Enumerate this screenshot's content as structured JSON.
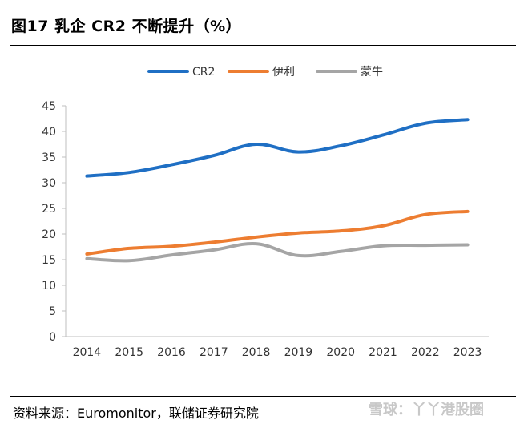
{
  "title": "图17 乳企 CR2 不断提升（%）",
  "source": "资料来源：Euromonitor，联储证券研究院",
  "watermark": "雪球：丫丫港股圈",
  "colors": {
    "CR2": "#1f6fc4",
    "伊利": "#ed7d31",
    "蒙牛": "#a5a5a5"
  },
  "chart_data": {
    "type": "line",
    "x": [
      "2014",
      "2015",
      "2016",
      "2017",
      "2018",
      "2019",
      "2020",
      "2021",
      "2022",
      "2023"
    ],
    "series": [
      {
        "name": "CR2",
        "values": [
          31.3,
          32.0,
          33.5,
          35.3,
          37.5,
          36.0,
          37.2,
          39.3,
          41.6,
          42.3
        ]
      },
      {
        "name": "伊利",
        "values": [
          16.1,
          17.2,
          17.6,
          18.4,
          19.4,
          20.2,
          20.6,
          21.6,
          23.8,
          24.4
        ]
      },
      {
        "name": "蒙牛",
        "values": [
          15.2,
          14.8,
          15.9,
          16.9,
          18.1,
          15.8,
          16.6,
          17.7,
          17.8,
          17.9
        ]
      }
    ],
    "yticks": [
      "0",
      "5",
      "10",
      "15",
      "20",
      "25",
      "30",
      "35",
      "40",
      "45"
    ],
    "ylim": [
      0,
      45
    ],
    "legend": "top-center",
    "grid": false
  }
}
